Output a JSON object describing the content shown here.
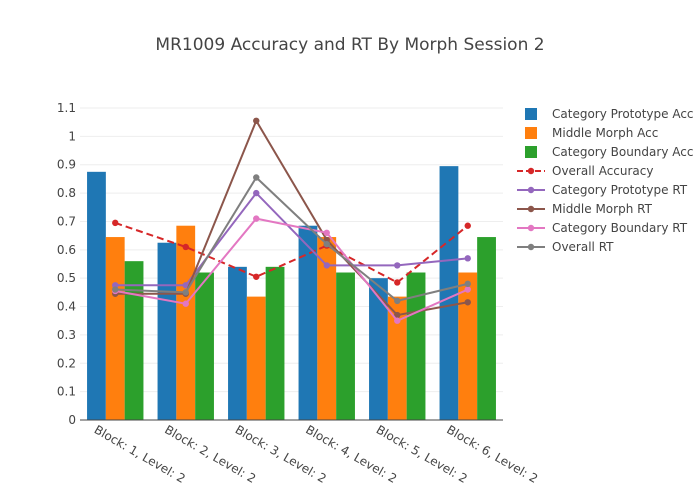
{
  "chart_data": {
    "type": "bar",
    "title": "MR1009 Accuracy and RT By Morph Session 2",
    "categories": [
      "Block: 1, Level: 2",
      "Block: 2, Level: 2",
      "Block: 3, Level: 2",
      "Block: 4, Level: 2",
      "Block: 5, Level: 2",
      "Block: 6, Level: 2"
    ],
    "ylim": [
      0,
      1.1
    ],
    "yticks": [
      "0",
      "0.1",
      "0.2",
      "0.3",
      "0.4",
      "0.5",
      "0.6",
      "0.7",
      "0.8",
      "0.9",
      "1",
      "1.1"
    ],
    "grid": true,
    "legend_position": "right",
    "bar_series": [
      {
        "name": "Category Prototype Acc",
        "color": "#1f77b4",
        "values": [
          0.875,
          0.625,
          0.54,
          0.685,
          0.5,
          0.895
        ]
      },
      {
        "name": "Middle Morph Acc",
        "color": "#ff7f0e",
        "values": [
          0.645,
          0.685,
          0.435,
          0.645,
          0.435,
          0.52
        ]
      },
      {
        "name": "Category Boundary Acc",
        "color": "#2ca02c",
        "values": [
          0.56,
          0.52,
          0.54,
          0.52,
          0.52,
          0.645
        ]
      }
    ],
    "line_series": [
      {
        "name": "Overall Accuracy",
        "color": "#d62728",
        "dash": true,
        "values": [
          0.695,
          0.61,
          0.505,
          0.615,
          0.485,
          0.685
        ]
      },
      {
        "name": "Category Prototype RT",
        "color": "#9467bd",
        "dash": false,
        "values": [
          0.475,
          0.475,
          0.8,
          0.545,
          0.545,
          0.57
        ]
      },
      {
        "name": "Middle Morph RT",
        "color": "#8c564b",
        "dash": false,
        "values": [
          0.445,
          0.445,
          1.055,
          0.635,
          0.37,
          0.415
        ]
      },
      {
        "name": "Category Boundary RT",
        "color": "#e377c2",
        "dash": false,
        "values": [
          0.455,
          0.41,
          0.71,
          0.66,
          0.35,
          0.46
        ]
      },
      {
        "name": "Overall RT",
        "color": "#7f7f7f",
        "dash": false,
        "values": [
          0.46,
          0.45,
          0.855,
          0.62,
          0.42,
          0.48
        ]
      }
    ]
  }
}
